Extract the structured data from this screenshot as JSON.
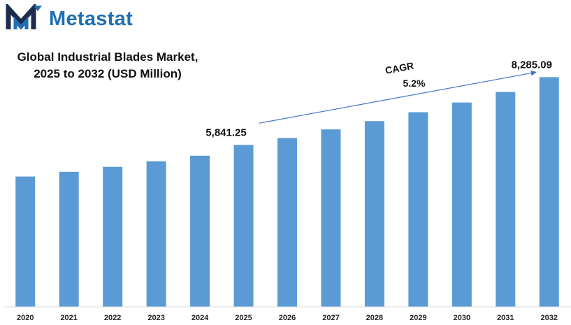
{
  "brand": {
    "name": "Metastat",
    "color": "#1f6fb2",
    "dark_color": "#1e2b4d",
    "icon": "metastat-m-logo-icon"
  },
  "chart_data": {
    "type": "bar",
    "title_lines": [
      "Global Industrial Blades Market,",
      "2025 to 2032 (USD Million)"
    ],
    "categories": [
      "2020",
      "2021",
      "2022",
      "2023",
      "2024",
      "2025",
      "2026",
      "2027",
      "2028",
      "2029",
      "2030",
      "2031",
      "2032"
    ],
    "values": [
      4700,
      4870,
      5050,
      5250,
      5450,
      5841.25,
      6090,
      6400,
      6700,
      7020,
      7370,
      7750,
      8285.09
    ],
    "data_labels": [
      {
        "category": "2025",
        "text": "5,841.25"
      },
      {
        "category": "2032",
        "text": "8,285.09"
      }
    ],
    "annotation": {
      "label": "CAGR",
      "value": "5.2%",
      "from": "2025",
      "to": "2032"
    },
    "bar_color": "#5b9bd5",
    "ylim": [
      0,
      9000
    ],
    "grid": false,
    "legend": "none"
  }
}
